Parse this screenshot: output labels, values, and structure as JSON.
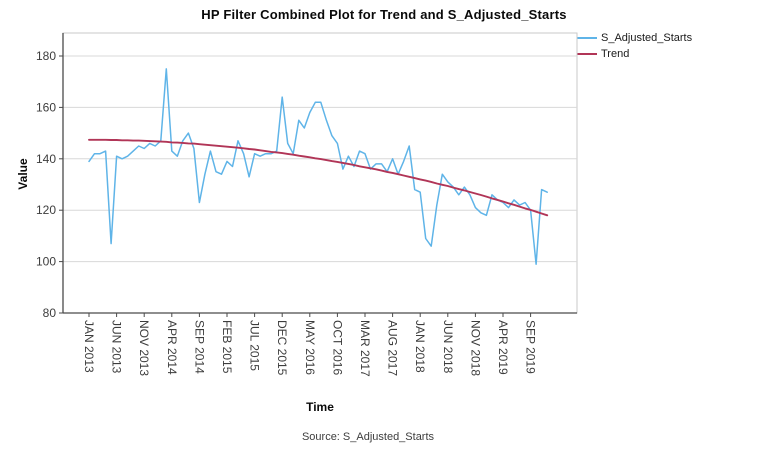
{
  "title": "HP Filter Combined Plot for Trend and S_Adjusted_Starts",
  "legend": {
    "entries": [
      {
        "label": "S_Adjusted_Starts",
        "color": "#5FB4E8"
      },
      {
        "label": "Trend",
        "color": "#B13557"
      }
    ]
  },
  "axes": {
    "y_title": "Value",
    "x_title": "Time"
  },
  "source_note": "Source: S_Adjusted_Starts",
  "colors": {
    "series_blue": "#5FB4E8",
    "series_red": "#B13557",
    "gridline": "#d8d8d8",
    "plot_border": "#c9c9c9",
    "axis_line": "#4a4a4a",
    "tick_text": "#3d3d3d"
  },
  "chart_data": {
    "type": "line",
    "title": "HP Filter Combined Plot for Trend and S_Adjusted_Starts",
    "xlabel": "Time",
    "ylabel": "Value",
    "ylim": [
      80,
      185
    ],
    "yticks": [
      80,
      100,
      120,
      140,
      160,
      180
    ],
    "grid": "horizontal",
    "legend_position": "top-right",
    "x_start": "JAN 2013",
    "x_end": "DEC 2019",
    "x_frequency": "monthly",
    "x_tick_every_months": 5,
    "x_tick_labels": [
      "JAN 2013",
      "JUN 2013",
      "NOV 2013",
      "APR 2014",
      "SEP 2014",
      "FEB 2015",
      "JUL 2015",
      "DEC 2015",
      "MAY 2016",
      "OCT 2016",
      "MAR 2017",
      "AUG 2017",
      "JAN 2018",
      "JUN 2018",
      "NOV 2018",
      "APR 2019",
      "SEP 2019"
    ],
    "series": [
      {
        "name": "S_Adjusted_Starts",
        "color": "#5FB4E8",
        "values": [
          139,
          142,
          142,
          143,
          107,
          141,
          140,
          141,
          143,
          145,
          144,
          146,
          145,
          147,
          175,
          143,
          141,
          147,
          150,
          144,
          123,
          134,
          143,
          135,
          134,
          139,
          137,
          147,
          142,
          133,
          142,
          141,
          142,
          142,
          143,
          164,
          146,
          142,
          155,
          152,
          158,
          162,
          162,
          155,
          149,
          146,
          136,
          141,
          137,
          143,
          142,
          136,
          138,
          138,
          135,
          140,
          134,
          139,
          145,
          128,
          127,
          109,
          106,
          122,
          134,
          131,
          129,
          126,
          129,
          126,
          121,
          119,
          118,
          126,
          124,
          123,
          121,
          124,
          122,
          123,
          120,
          99,
          128,
          127
        ]
      },
      {
        "name": "Trend",
        "color": "#B13557",
        "values": [
          147.4,
          147.4,
          147.4,
          147.4,
          147.3,
          147.3,
          147.2,
          147.2,
          147.1,
          147.1,
          147.0,
          146.9,
          146.8,
          146.7,
          146.6,
          146.4,
          146.3,
          146.2,
          146.0,
          145.9,
          145.7,
          145.5,
          145.3,
          145.1,
          144.9,
          144.7,
          144.5,
          144.3,
          144.1,
          143.8,
          143.6,
          143.3,
          143.0,
          142.7,
          142.5,
          142.2,
          141.9,
          141.6,
          141.2,
          140.9,
          140.6,
          140.2,
          139.9,
          139.5,
          139.1,
          138.8,
          138.4,
          138.0,
          137.6,
          137.1,
          136.7,
          136.3,
          135.9,
          135.4,
          134.9,
          134.5,
          134.0,
          133.5,
          133.0,
          132.5,
          132.0,
          131.5,
          131.0,
          130.4,
          129.9,
          129.4,
          128.8,
          128.2,
          127.7,
          127.1,
          126.5,
          125.9,
          125.3,
          124.6,
          124.0,
          123.4,
          122.7,
          122.1,
          121.4,
          120.7,
          120.1,
          119.4,
          118.7,
          118.0
        ]
      }
    ]
  }
}
